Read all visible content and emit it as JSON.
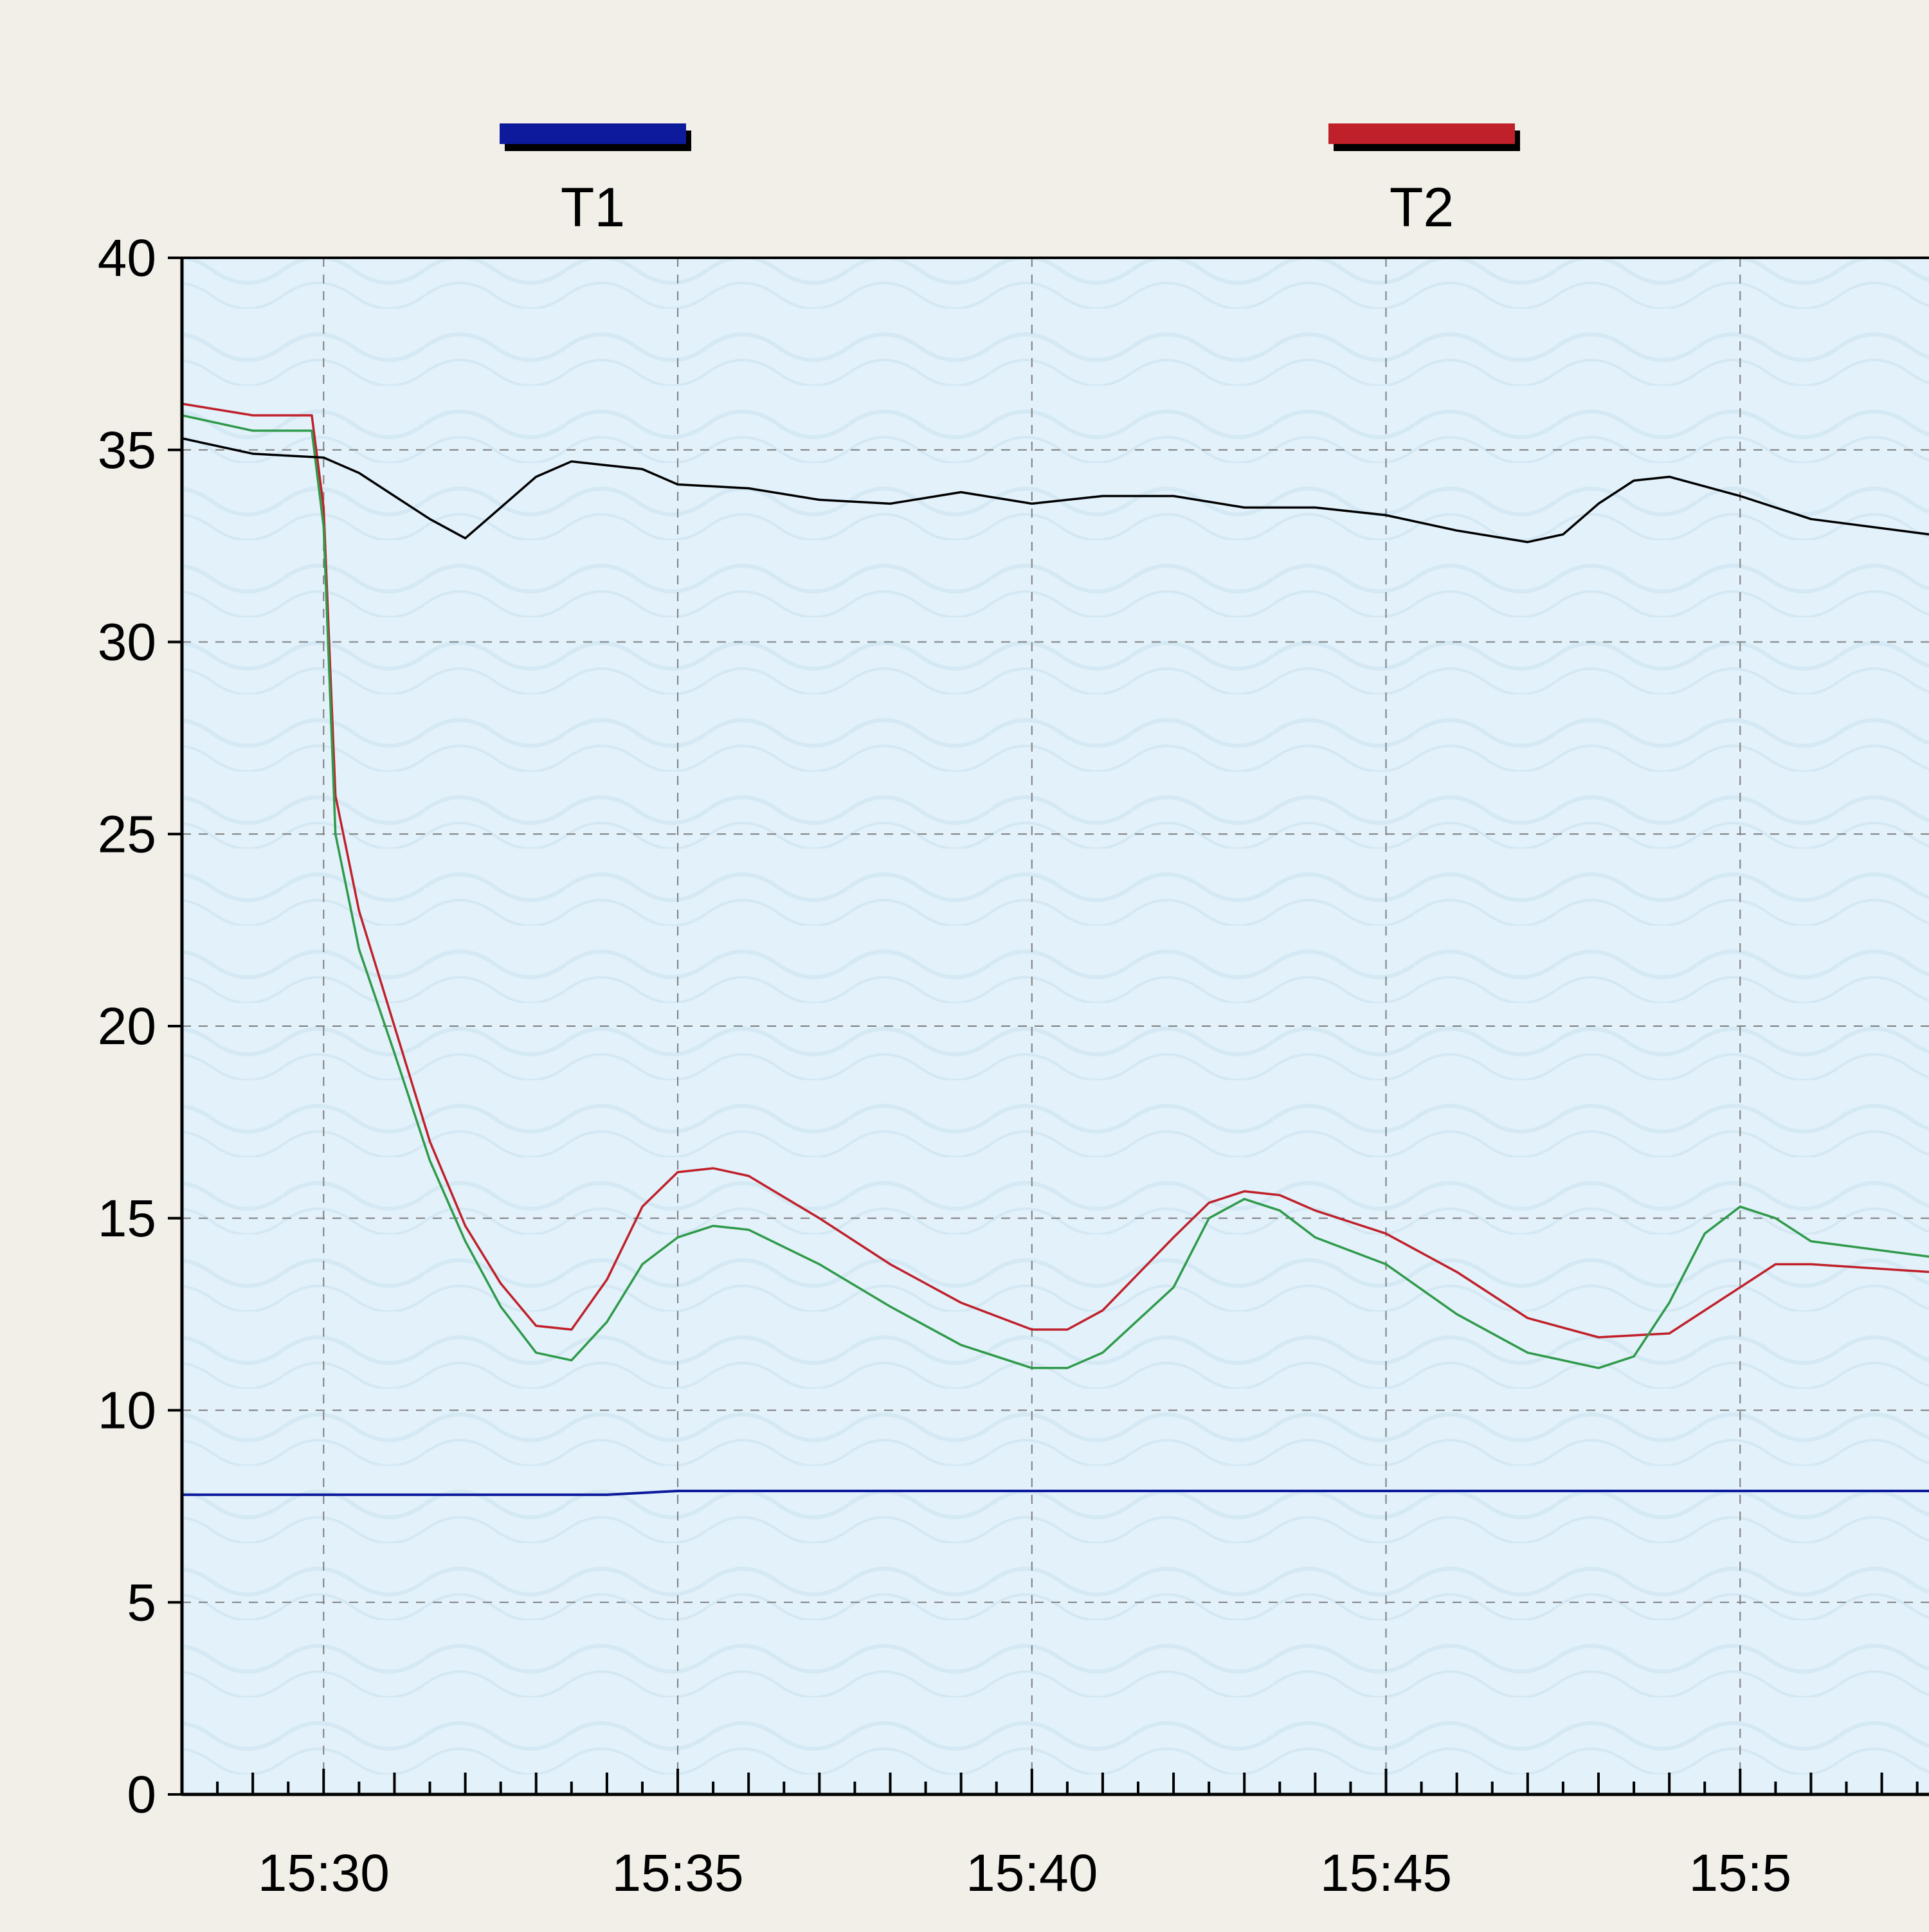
{
  "chart_data": {
    "type": "line",
    "title": "",
    "xlabel": "",
    "ylabel": "",
    "ylim": [
      0,
      40
    ],
    "xlim": [
      "15:28:00",
      "15:52:40"
    ],
    "grid": true,
    "legend": {
      "placement": "top",
      "entries": [
        "T1",
        "T2"
      ]
    },
    "y_ticks": [
      0,
      5,
      10,
      15,
      20,
      25,
      30,
      35,
      40
    ],
    "x_ticks": [
      "15:30",
      "15:35",
      "15:40",
      "15:45",
      "15:5"
    ],
    "series": [
      {
        "name": "T1",
        "color": "#0d1a9c",
        "points": [
          [
            "15:28:00",
            7.8
          ],
          [
            "15:30:00",
            7.8
          ],
          [
            "15:31:00",
            7.8
          ],
          [
            "15:32:00",
            7.8
          ],
          [
            "15:33:00",
            7.8
          ],
          [
            "15:34:00",
            7.8
          ],
          [
            "15:35:00",
            7.9
          ],
          [
            "15:40:00",
            7.9
          ],
          [
            "15:45:00",
            7.9
          ],
          [
            "15:50:00",
            7.9
          ],
          [
            "15:52:40",
            7.9
          ]
        ]
      },
      {
        "name": "T2",
        "color": "#c0202a",
        "points": [
          [
            "15:28:00",
            36.2
          ],
          [
            "15:29:00",
            35.9
          ],
          [
            "15:29:50",
            35.9
          ],
          [
            "15:30:00",
            33.5
          ],
          [
            "15:30:10",
            26.0
          ],
          [
            "15:30:30",
            23.0
          ],
          [
            "15:31:00",
            20.0
          ],
          [
            "15:31:30",
            17.0
          ],
          [
            "15:32:00",
            14.8
          ],
          [
            "15:32:30",
            13.3
          ],
          [
            "15:33:00",
            12.2
          ],
          [
            "15:33:30",
            12.1
          ],
          [
            "15:34:00",
            13.4
          ],
          [
            "15:34:30",
            15.3
          ],
          [
            "15:35:00",
            16.2
          ],
          [
            "15:35:30",
            16.3
          ],
          [
            "15:36:00",
            16.1
          ],
          [
            "15:37:00",
            15.0
          ],
          [
            "15:38:00",
            13.8
          ],
          [
            "15:39:00",
            12.8
          ],
          [
            "15:40:00",
            12.1
          ],
          [
            "15:40:30",
            12.1
          ],
          [
            "15:41:00",
            12.6
          ],
          [
            "15:42:00",
            14.5
          ],
          [
            "15:42:30",
            15.4
          ],
          [
            "15:43:00",
            15.7
          ],
          [
            "15:43:30",
            15.6
          ],
          [
            "15:44:00",
            15.2
          ],
          [
            "15:45:00",
            14.6
          ],
          [
            "15:46:00",
            13.6
          ],
          [
            "15:47:00",
            12.4
          ],
          [
            "15:48:00",
            11.9
          ],
          [
            "15:49:00",
            12.0
          ],
          [
            "15:50:00",
            13.2
          ],
          [
            "15:50:30",
            13.8
          ],
          [
            "15:51:00",
            13.8
          ],
          [
            "15:52:40",
            13.6
          ]
        ]
      },
      {
        "color": "#2f9a4a",
        "points": [
          [
            "15:28:00",
            35.9
          ],
          [
            "15:29:00",
            35.5
          ],
          [
            "15:29:50",
            35.5
          ],
          [
            "15:30:00",
            33.0
          ],
          [
            "15:30:10",
            25.0
          ],
          [
            "15:30:30",
            22.0
          ],
          [
            "15:31:00",
            19.3
          ],
          [
            "15:31:30",
            16.5
          ],
          [
            "15:32:00",
            14.4
          ],
          [
            "15:32:30",
            12.7
          ],
          [
            "15:33:00",
            11.5
          ],
          [
            "15:33:30",
            11.3
          ],
          [
            "15:34:00",
            12.3
          ],
          [
            "15:34:30",
            13.8
          ],
          [
            "15:35:00",
            14.5
          ],
          [
            "15:35:30",
            14.8
          ],
          [
            "15:36:00",
            14.7
          ],
          [
            "15:37:00",
            13.8
          ],
          [
            "15:38:00",
            12.7
          ],
          [
            "15:39:00",
            11.7
          ],
          [
            "15:40:00",
            11.1
          ],
          [
            "15:40:30",
            11.1
          ],
          [
            "15:41:00",
            11.5
          ],
          [
            "15:42:00",
            13.2
          ],
          [
            "15:42:30",
            15.0
          ],
          [
            "15:43:00",
            15.5
          ],
          [
            "15:43:30",
            15.2
          ],
          [
            "15:44:00",
            14.5
          ],
          [
            "15:45:00",
            13.8
          ],
          [
            "15:46:00",
            12.5
          ],
          [
            "15:47:00",
            11.5
          ],
          [
            "15:48:00",
            11.1
          ],
          [
            "15:48:30",
            11.4
          ],
          [
            "15:49:00",
            12.8
          ],
          [
            "15:49:30",
            14.6
          ],
          [
            "15:50:00",
            15.3
          ],
          [
            "15:50:30",
            15.0
          ],
          [
            "15:51:00",
            14.4
          ],
          [
            "15:52:40",
            14.0
          ]
        ]
      },
      {
        "color": "#000000",
        "points": [
          [
            "15:28:00",
            35.3
          ],
          [
            "15:29:00",
            34.9
          ],
          [
            "15:30:00",
            34.8
          ],
          [
            "15:30:30",
            34.4
          ],
          [
            "15:31:00",
            33.8
          ],
          [
            "15:31:30",
            33.2
          ],
          [
            "15:32:00",
            32.7
          ],
          [
            "15:32:30",
            33.5
          ],
          [
            "15:33:00",
            34.3
          ],
          [
            "15:33:30",
            34.7
          ],
          [
            "15:34:00",
            34.6
          ],
          [
            "15:34:30",
            34.5
          ],
          [
            "15:35:00",
            34.1
          ],
          [
            "15:36:00",
            34.0
          ],
          [
            "15:37:00",
            33.7
          ],
          [
            "15:38:00",
            33.6
          ],
          [
            "15:39:00",
            33.9
          ],
          [
            "15:40:00",
            33.6
          ],
          [
            "15:41:00",
            33.8
          ],
          [
            "15:42:00",
            33.8
          ],
          [
            "15:43:00",
            33.5
          ],
          [
            "15:44:00",
            33.5
          ],
          [
            "15:45:00",
            33.3
          ],
          [
            "15:46:00",
            32.9
          ],
          [
            "15:47:00",
            32.6
          ],
          [
            "15:47:30",
            32.8
          ],
          [
            "15:48:00",
            33.6
          ],
          [
            "15:48:30",
            34.2
          ],
          [
            "15:49:00",
            34.3
          ],
          [
            "15:50:00",
            33.8
          ],
          [
            "15:51:00",
            33.2
          ],
          [
            "15:52:40",
            32.8
          ]
        ]
      }
    ]
  }
}
